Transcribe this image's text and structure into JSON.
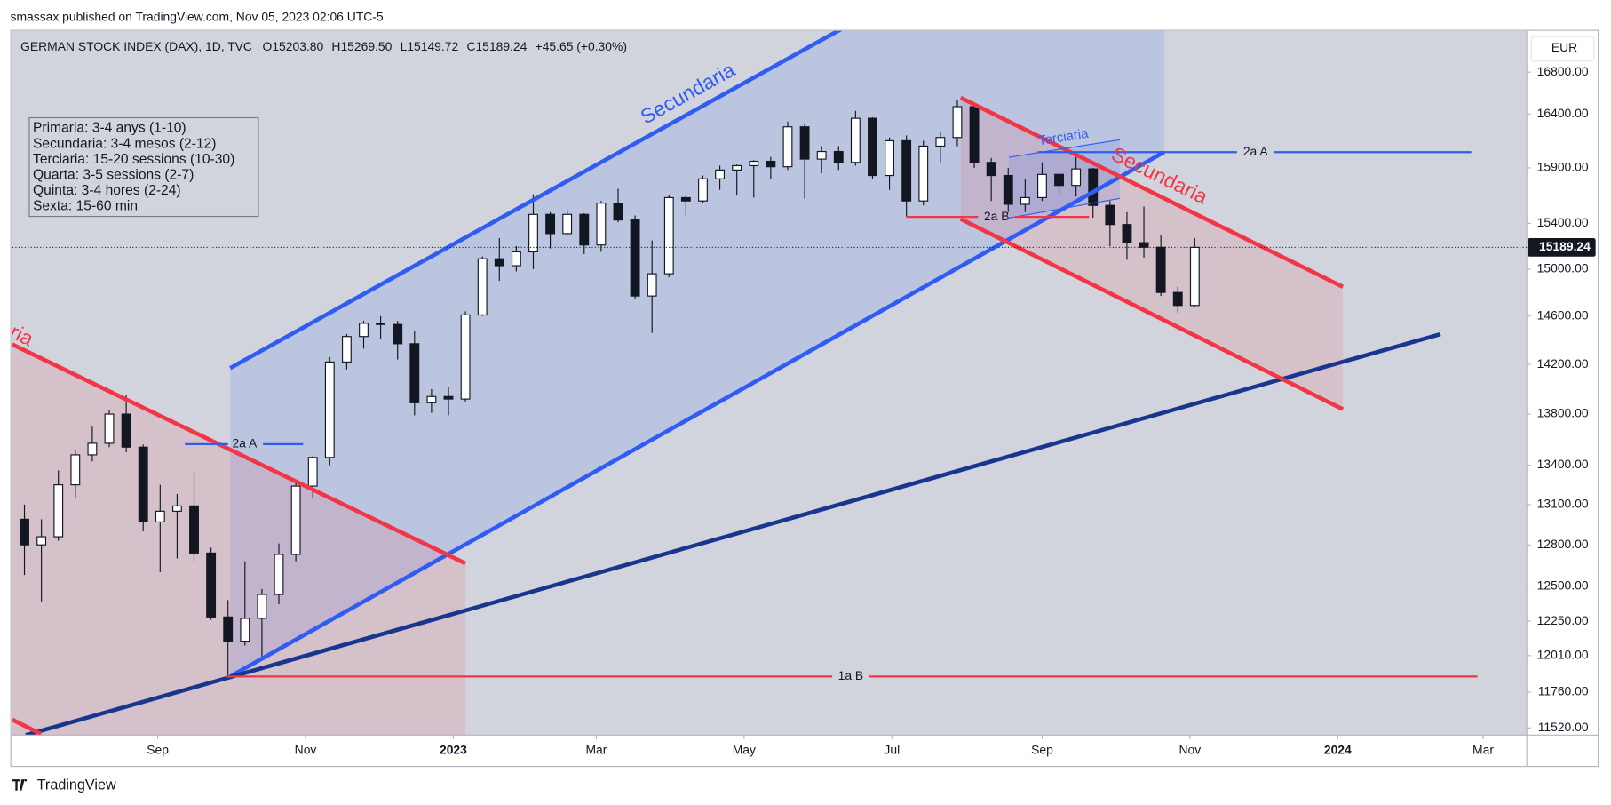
{
  "publisher": "smassax published on TradingView.com, Nov 05, 2023 02:06 UTC-5",
  "footer": "TradingView",
  "currency": "EUR",
  "legend": {
    "symbol": "GERMAN STOCK INDEX (DAX), 1D, TVC",
    "values": [
      "O15203.80",
      "H15269.50",
      "L15149.72",
      "C15189.24",
      "+45.65 (+0.30%)"
    ]
  },
  "info_box": [
    "Primaria: 3-4 anys (1-10)",
    "Secundaria: 3-4 mesos (2-12)",
    "Terciaria: 15-20 sessions (10-30)",
    "Quarta: 3-5 sessions (2-7)",
    "Quinta: 3-4 hores (2-24)",
    "Sexta: 15-60 min"
  ],
  "annotations": {
    "secundaria_blue": "Secundaria",
    "secundaria_red": "Secundaria",
    "secundaria_left": "Secundaria",
    "terciaria": "Terciaria",
    "a2_left": "2a A",
    "a2_right": "2a A",
    "b2": "2a B",
    "b1": "1a B"
  },
  "chart_data": {
    "type": "candlestick",
    "log_scale": true,
    "grid": false,
    "up_color": "#ffffff",
    "down_color": "#131722",
    "wick_color": "#131722",
    "xlim": [
      "2022-07-03",
      "2024-03-19"
    ],
    "xticks": [
      {
        "value": "2022-09-01",
        "label": "Sep"
      },
      {
        "value": "2022-11-01",
        "label": "Nov"
      },
      {
        "value": "2023-01-01",
        "label": "2023"
      },
      {
        "value": "2023-03-01",
        "label": "Mar"
      },
      {
        "value": "2023-05-01",
        "label": "May"
      },
      {
        "value": "2023-07-01",
        "label": "Jul"
      },
      {
        "value": "2023-09-01",
        "label": "Sep"
      },
      {
        "value": "2023-11-01",
        "label": "Nov"
      },
      {
        "value": "2024-01-01",
        "label": "2024"
      },
      {
        "value": "2024-03-01",
        "label": "Mar"
      }
    ],
    "ylim": [
      11473,
      17204
    ],
    "yticks": [
      {
        "value": 16800,
        "label": "16800.00"
      },
      {
        "value": 16400,
        "label": "16400.00"
      },
      {
        "value": 15900,
        "label": "15900.00"
      },
      {
        "value": 15400,
        "label": "15400.00"
      },
      {
        "value": 15000,
        "label": "15000.00"
      },
      {
        "value": 14600,
        "label": "14600.00"
      },
      {
        "value": 14200,
        "label": "14200.00"
      },
      {
        "value": 13800,
        "label": "13800.00"
      },
      {
        "value": 13400,
        "label": "13400.00"
      },
      {
        "value": 13100,
        "label": "13100.00"
      },
      {
        "value": 12800,
        "label": "12800.00"
      },
      {
        "value": 12500,
        "label": "12500.00"
      },
      {
        "value": 12250,
        "label": "12250.00"
      },
      {
        "value": 12010,
        "label": "12010.00"
      },
      {
        "value": 11760,
        "label": "11760.00"
      },
      {
        "value": 11520,
        "label": "11520.00"
      }
    ],
    "x": [
      "2022-07-08",
      "2022-07-15",
      "2022-07-22",
      "2022-07-29",
      "2022-08-05",
      "2022-08-12",
      "2022-08-19",
      "2022-08-26",
      "2022-09-02",
      "2022-09-09",
      "2022-09-16",
      "2022-09-23",
      "2022-09-30",
      "2022-10-07",
      "2022-10-14",
      "2022-10-21",
      "2022-10-28",
      "2022-11-04",
      "2022-11-11",
      "2022-11-18",
      "2022-11-25",
      "2022-12-02",
      "2022-12-09",
      "2022-12-16",
      "2022-12-23",
      "2022-12-30",
      "2023-01-06",
      "2023-01-13",
      "2023-01-20",
      "2023-01-27",
      "2023-02-03",
      "2023-02-10",
      "2023-02-17",
      "2023-02-24",
      "2023-03-03",
      "2023-03-10",
      "2023-03-17",
      "2023-03-24",
      "2023-03-31",
      "2023-04-07",
      "2023-04-14",
      "2023-04-21",
      "2023-04-28",
      "2023-05-05",
      "2023-05-12",
      "2023-05-19",
      "2023-05-26",
      "2023-06-02",
      "2023-06-09",
      "2023-06-16",
      "2023-06-23",
      "2023-06-30",
      "2023-07-07",
      "2023-07-14",
      "2023-07-21",
      "2023-07-28",
      "2023-08-04",
      "2023-08-11",
      "2023-08-18",
      "2023-08-25",
      "2023-09-01",
      "2023-09-08",
      "2023-09-15",
      "2023-09-22",
      "2023-09-29",
      "2023-10-06",
      "2023-10-13",
      "2023-10-20",
      "2023-10-27",
      "2023-11-03"
    ],
    "open": [
      12990,
      12800,
      12860,
      13250,
      13480,
      13570,
      13800,
      13540,
      12970,
      13050,
      13090,
      12740,
      12280,
      12110,
      12270,
      12440,
      12730,
      13240,
      13460,
      14220,
      14430,
      14540,
      14530,
      14370,
      13890,
      13940,
      13920,
      14610,
      15090,
      15030,
      15150,
      15480,
      15310,
      15480,
      15210,
      15580,
      15430,
      14770,
      14960,
      15630,
      15600,
      15800,
      15880,
      15920,
      15960,
      15910,
      16280,
      15980,
      16050,
      15950,
      16360,
      15830,
      16150,
      15600,
      16100,
      16180,
      16470,
      15950,
      15830,
      15570,
      15630,
      15840,
      15740,
      15890,
      15560,
      15390,
      15230,
      15190,
      14800,
      14690
    ],
    "high": [
      13100,
      12990,
      13360,
      13520,
      13700,
      13830,
      13950,
      13560,
      13250,
      13180,
      13350,
      12780,
      12400,
      12680,
      12480,
      12810,
      13280,
      13470,
      14260,
      14450,
      14560,
      14600,
      14560,
      14480,
      14000,
      14020,
      14640,
      15110,
      15270,
      15200,
      15660,
      15500,
      15520,
      15490,
      15600,
      15710,
      15470,
      15250,
      15650,
      15650,
      15830,
      15920,
      15930,
      15970,
      16000,
      16330,
      16310,
      16100,
      16100,
      16430,
      16370,
      16180,
      16200,
      16150,
      16240,
      16530,
      16500,
      15990,
      15900,
      15800,
      15950,
      15850,
      16000,
      15900,
      15600,
      15500,
      15550,
      15300,
      14850,
      15269.5
    ],
    "low": [
      12580,
      12390,
      12830,
      13150,
      13430,
      13540,
      13500,
      12900,
      12600,
      12700,
      12680,
      12260,
      11860,
      12080,
      11980,
      12370,
      12680,
      13150,
      13400,
      14160,
      14330,
      14410,
      14240,
      13790,
      13810,
      13790,
      13900,
      14600,
      14900,
      14980,
      15000,
      15180,
      15300,
      15130,
      15150,
      15410,
      14750,
      14460,
      14930,
      15460,
      15580,
      15700,
      15650,
      15630,
      15800,
      15880,
      15620,
      15850,
      15880,
      15920,
      15800,
      15700,
      15460,
      15560,
      15950,
      16100,
      15900,
      15600,
      15500,
      15500,
      15600,
      15650,
      15640,
      15450,
      15200,
      15080,
      15100,
      14770,
      14630,
      14680
    ],
    "close": [
      12800,
      12860,
      13250,
      13480,
      13570,
      13800,
      13540,
      12970,
      13050,
      13090,
      12740,
      12280,
      12110,
      12270,
      12440,
      12730,
      13240,
      13460,
      14220,
      14430,
      14540,
      14530,
      14370,
      13890,
      13940,
      13920,
      14610,
      15090,
      15030,
      15150,
      15480,
      15310,
      15480,
      15210,
      15580,
      15430,
      14770,
      14960,
      15630,
      15600,
      15800,
      15880,
      15920,
      15960,
      15910,
      16280,
      15980,
      16050,
      15950,
      16360,
      15830,
      16150,
      15600,
      16100,
      16180,
      16470,
      15950,
      15830,
      15570,
      15630,
      15840,
      15740,
      15890,
      15560,
      15390,
      15230,
      15190,
      14800,
      14690,
      15189.24
    ]
  }
}
